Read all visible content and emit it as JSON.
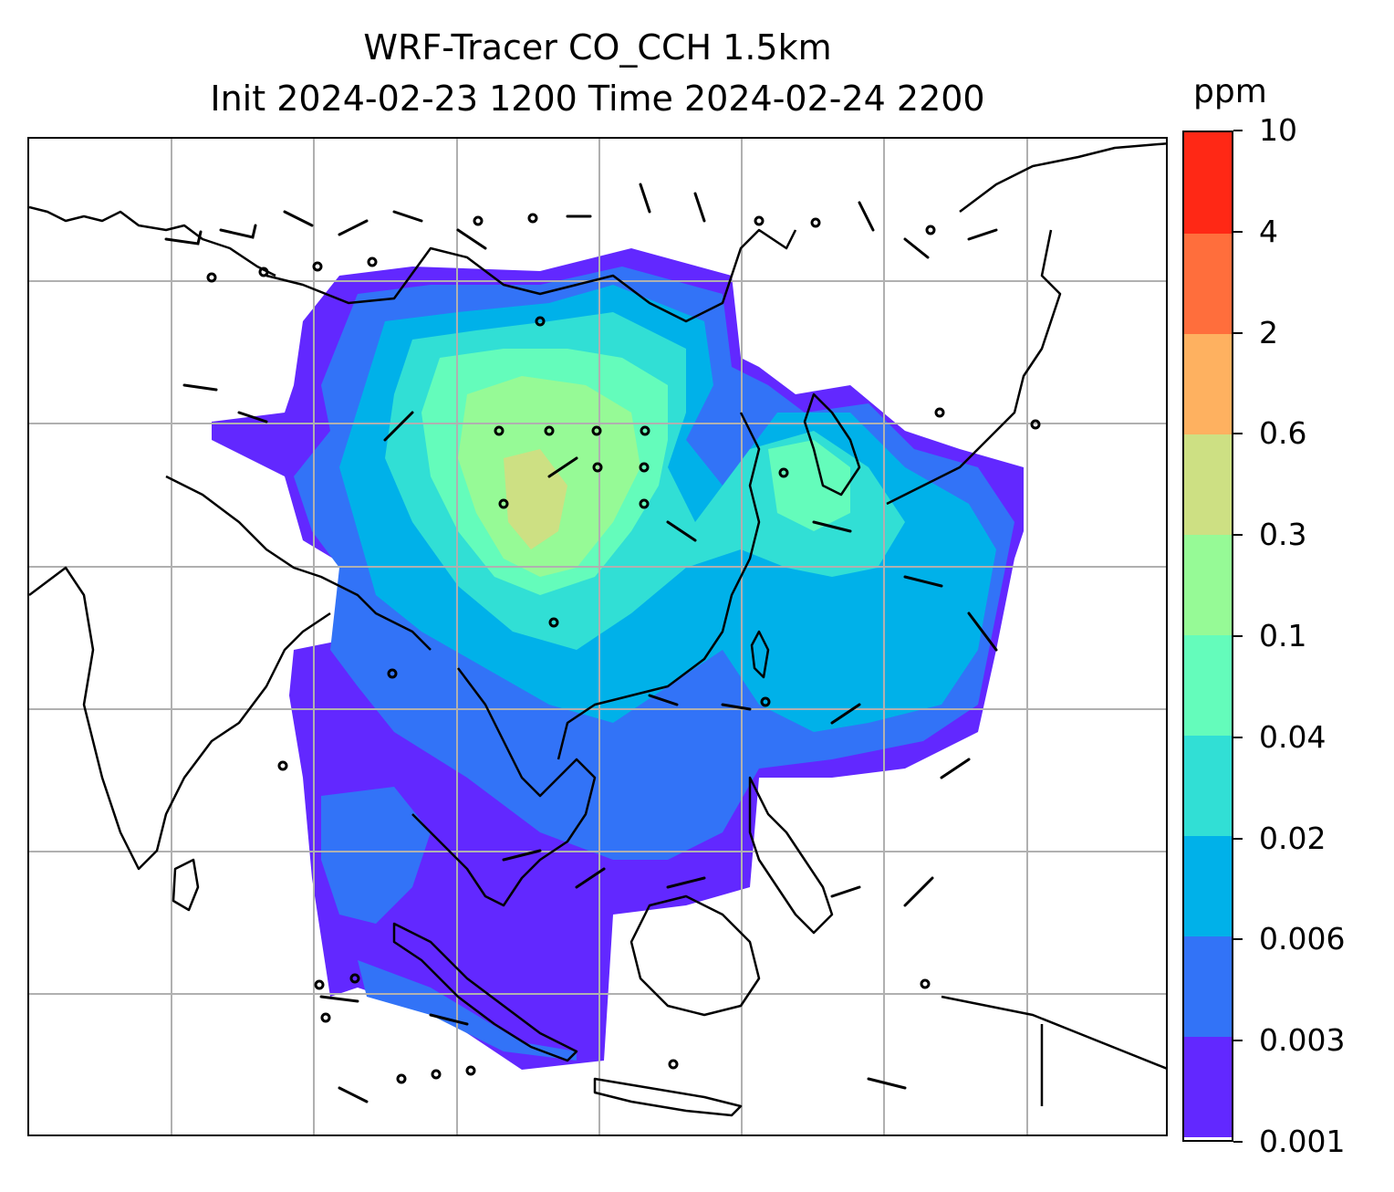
{
  "title": {
    "line1": "WRF-Tracer CO_CCH 1.5km",
    "line2": "Init 2024-02-23 1200 Time 2024-02-24 2200"
  },
  "colorbar": {
    "unit": "ppm",
    "levels": [
      "0.001",
      "0.003",
      "0.006",
      "0.02",
      "0.04",
      "0.1",
      "0.3",
      "0.6",
      "2",
      "4",
      "10"
    ],
    "colors": [
      "#6228ff",
      "#3273f7",
      "#00b1e9",
      "#31dfd5",
      "#64fcbb",
      "#96fa96",
      "#cde083",
      "#feb160",
      "#ff6e3c",
      "#ff2815"
    ]
  },
  "map": {
    "gridlines": "on",
    "gridline_color": "#b0b0b0",
    "coastline_color": "#000000",
    "wind_barbs": "on"
  }
}
